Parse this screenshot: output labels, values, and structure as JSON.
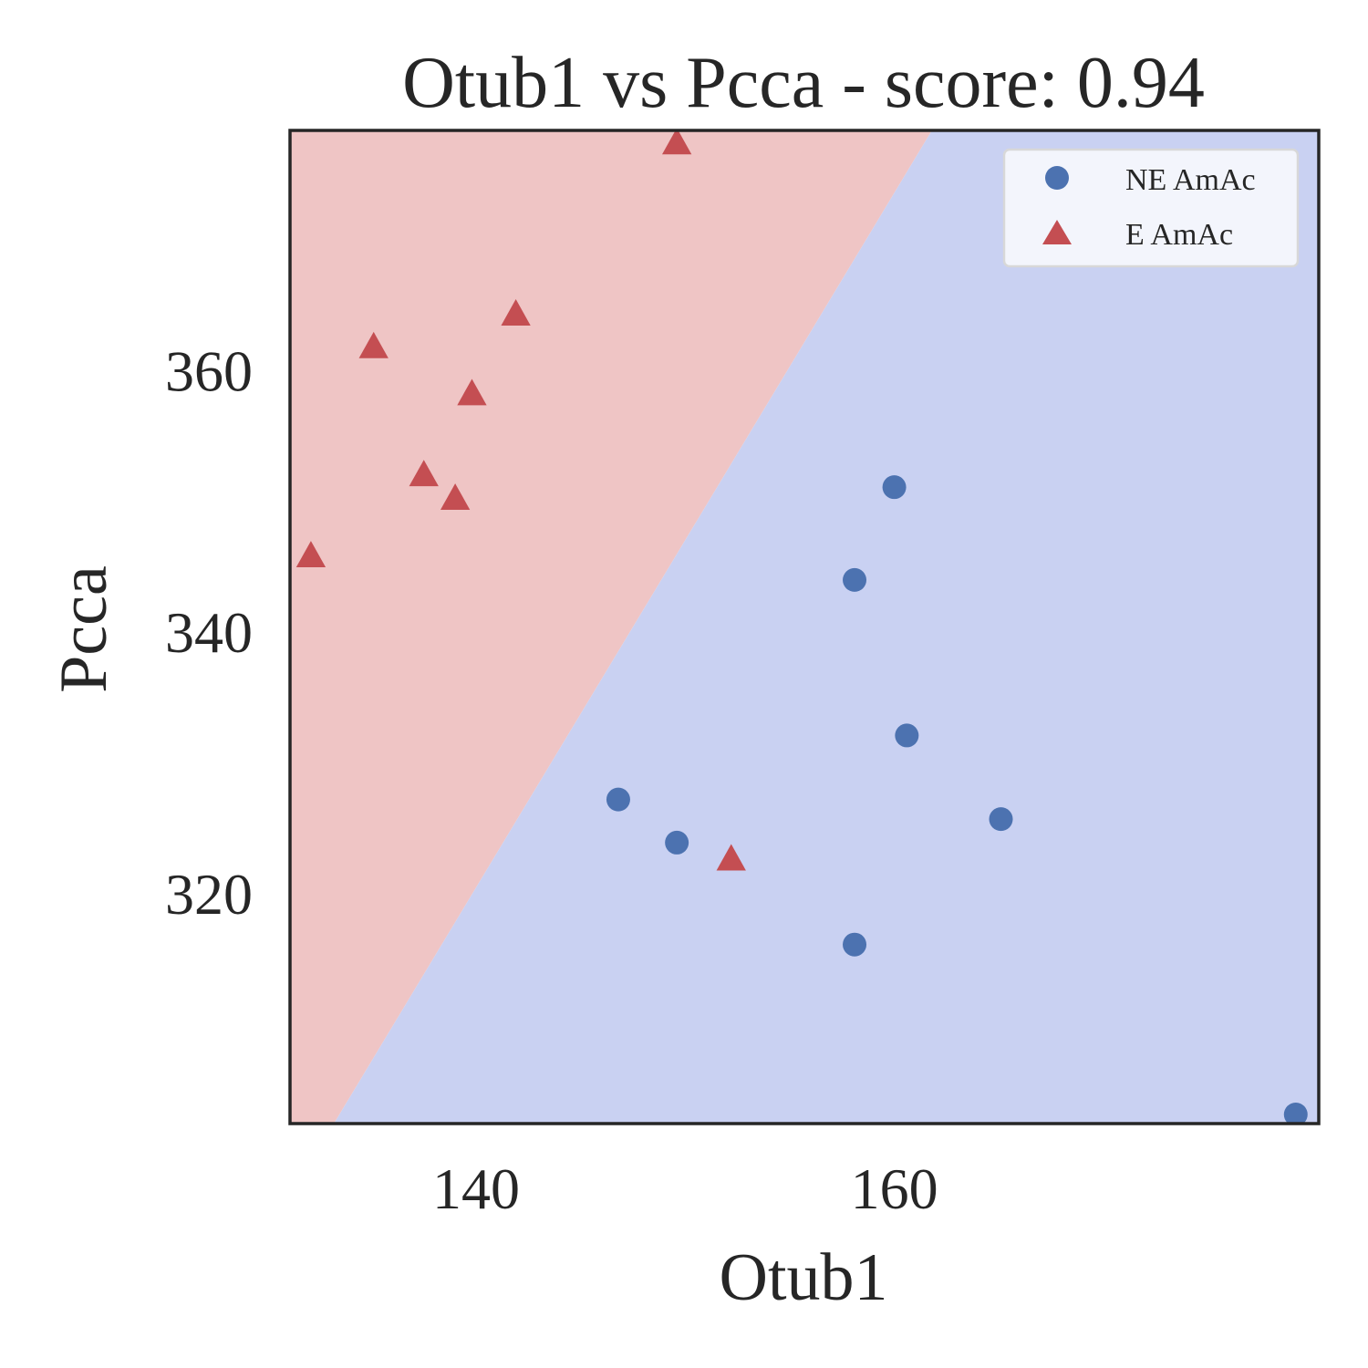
{
  "chart_data": {
    "type": "scatter",
    "title": "Otub1 vs Pcca - score: 0.94",
    "xlabel": "Otub1",
    "ylabel": "Pcca",
    "xlim": [
      131.1,
      180.3
    ],
    "ylim": [
      302.4,
      378.4
    ],
    "xticks": [
      140,
      160
    ],
    "yticks": [
      320,
      340,
      360
    ],
    "grid": false,
    "legend_position": "top-right",
    "decision_boundary": {
      "line": [
        [
          133.2,
          302.4
        ],
        [
          161.8,
          378.4
        ]
      ],
      "left_region_color": "#efc5c5",
      "right_region_color": "#c9d1f2"
    },
    "series": [
      {
        "name": "NE AmAc",
        "marker": "circle",
        "color": "#4c72b0",
        "x": [
          146.8,
          149.6,
          158.1,
          158.1,
          160.0,
          160.6,
          165.1,
          179.2
        ],
        "y": [
          327.2,
          323.9,
          316.1,
          344.0,
          351.1,
          332.1,
          325.7,
          303.1
        ]
      },
      {
        "name": "E AmAc",
        "marker": "triangle",
        "color": "#c44e52",
        "x": [
          132.1,
          135.1,
          137.5,
          139.0,
          139.8,
          141.9,
          149.6,
          152.2
        ],
        "y": [
          345.8,
          361.8,
          352.0,
          350.2,
          358.2,
          364.3,
          377.4,
          322.6
        ]
      }
    ]
  }
}
